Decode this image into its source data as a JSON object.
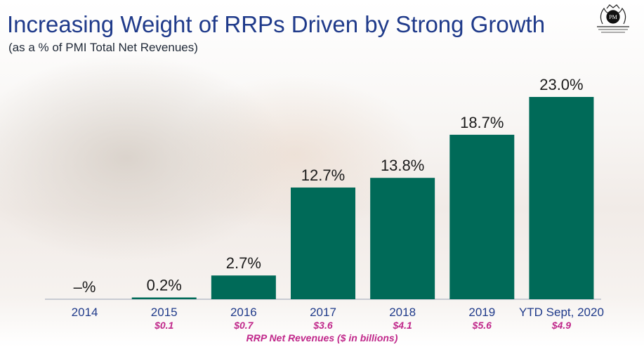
{
  "header": {
    "title": "Increasing Weight of RRPs Driven by Strong Growth",
    "subtitle": "(as a % of PMI Total Net Revenues)"
  },
  "colors": {
    "bar": "#006a58",
    "title": "#1f3a8a",
    "revenue_text": "#c0278a"
  },
  "logo": {
    "icon": "pmi-crest-logo"
  },
  "chart_data": {
    "type": "bar",
    "title": "Increasing Weight of RRPs Driven by Strong Growth",
    "subtitle": "(as a % of PMI Total Net Revenues)",
    "categories": [
      "2014",
      "2015",
      "2016",
      "2017",
      "2018",
      "2019",
      "YTD Sept, 2020"
    ],
    "values": [
      0,
      0.2,
      2.7,
      12.7,
      13.8,
      18.7,
      23.0
    ],
    "value_labels": [
      "–%",
      "0.2%",
      "2.7%",
      "12.7%",
      "13.8%",
      "18.7%",
      "23.0%"
    ],
    "secondary_labels": [
      "",
      "$0.1",
      "$0.7",
      "$3.6",
      "$4.1",
      "$5.6",
      "$4.9"
    ],
    "secondary_caption": "RRP Net Revenues ($ in billions)",
    "ylim": [
      0,
      23.0
    ],
    "grid": false,
    "legend": "none"
  }
}
